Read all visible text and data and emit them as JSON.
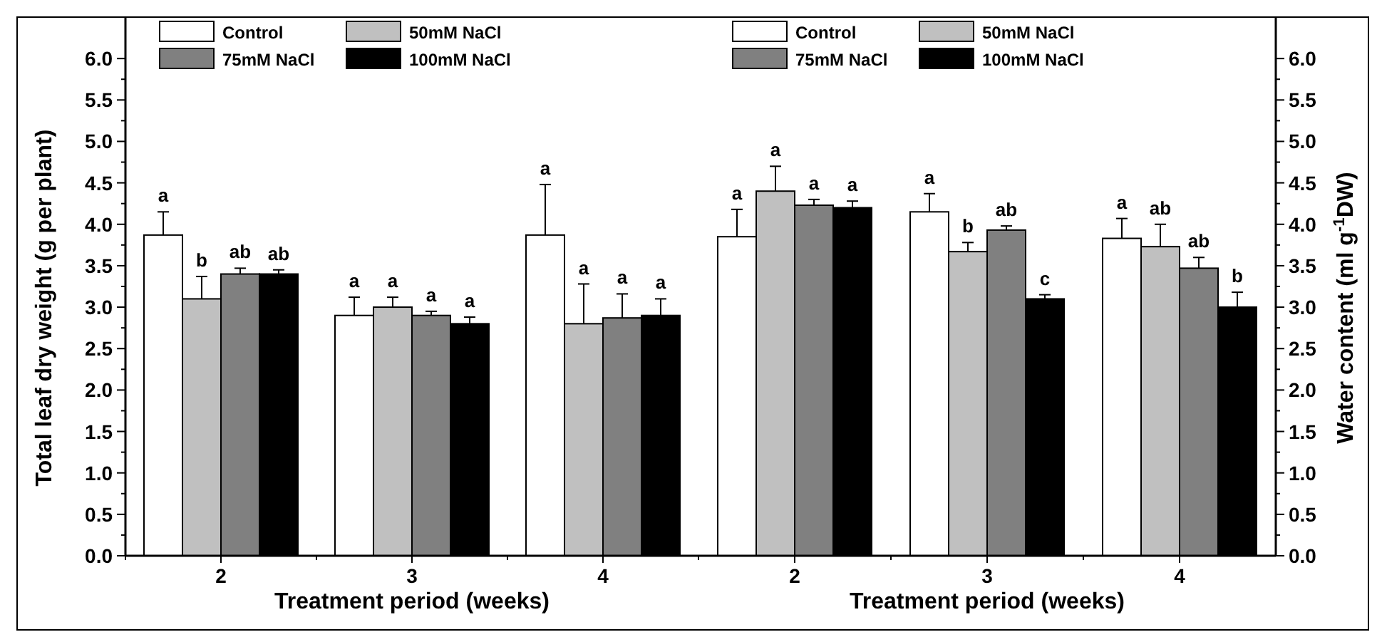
{
  "chart_data": [
    {
      "type": "bar",
      "xlabel": "Treatment period (weeks)",
      "ylabel": "Total leaf dry weight (g per plant)",
      "categories": [
        "2",
        "3",
        "4"
      ],
      "legend": "top left",
      "ylim": [
        0,
        6.5
      ],
      "yticks": [
        {
          "value": 0,
          "label": "0.0"
        },
        {
          "value": 0.25,
          "label": null
        },
        {
          "value": 0.5,
          "label": "0.5"
        },
        {
          "value": 0.75,
          "label": null
        },
        {
          "value": 1,
          "label": "1.0"
        },
        {
          "value": 1.25,
          "label": null
        },
        {
          "value": 1.5,
          "label": "1.5"
        },
        {
          "value": 1.75,
          "label": null
        },
        {
          "value": 2,
          "label": "2.0"
        },
        {
          "value": 2.25,
          "label": null
        },
        {
          "value": 2.5,
          "label": "2.5"
        },
        {
          "value": 2.75,
          "label": null
        },
        {
          "value": 3,
          "label": "3.0"
        },
        {
          "value": 3.25,
          "label": null
        },
        {
          "value": 3.5,
          "label": "3.5"
        },
        {
          "value": 3.75,
          "label": null
        },
        {
          "value": 4,
          "label": "4.0"
        },
        {
          "value": 4.25,
          "label": null
        },
        {
          "value": 4.5,
          "label": "4.5"
        },
        {
          "value": 4.75,
          "label": null
        },
        {
          "value": 5,
          "label": "5.0"
        },
        {
          "value": 5.25,
          "label": null
        },
        {
          "value": 5.5,
          "label": "5.5"
        },
        {
          "value": 5.75,
          "label": null
        },
        {
          "value": 6,
          "label": "6.0"
        }
      ],
      "series": [
        {
          "name": "Control",
          "color": "#ffffff",
          "values": [
            3.87,
            2.9,
            3.87
          ],
          "errors": [
            0.28,
            0.22,
            0.61
          ],
          "value_labels": [
            "a",
            "a",
            "a"
          ]
        },
        {
          "name": "50mM NaCl",
          "color": "#c0c0c0",
          "values": [
            3.1,
            3.0,
            2.8
          ],
          "errors": [
            0.27,
            0.12,
            0.48
          ],
          "value_labels": [
            "b",
            "a",
            "a"
          ]
        },
        {
          "name": "75mM NaCl",
          "color": "#808080",
          "values": [
            3.4,
            2.9,
            2.87
          ],
          "errors": [
            0.07,
            0.05,
            0.29
          ],
          "value_labels": [
            "ab",
            "a",
            "a"
          ]
        },
        {
          "name": "100mM NaCl",
          "color": "#000000",
          "values": [
            3.4,
            2.8,
            2.9
          ],
          "errors": [
            0.05,
            0.08,
            0.2
          ],
          "value_labels": [
            "ab",
            "a",
            "a"
          ]
        }
      ]
    },
    {
      "type": "bar",
      "xlabel": "Treatment period (weeks)",
      "y2label": "Water content (ml g$^{-1}$DW)",
      "categories": [
        "2",
        "3",
        "4"
      ],
      "legend": "top left",
      "y2lim": [
        0,
        6.5
      ],
      "y2ticks": [
        {
          "value": 0,
          "label": "0.0"
        },
        {
          "value": 0.25,
          "label": null
        },
        {
          "value": 0.5,
          "label": "0.5"
        },
        {
          "value": 0.75,
          "label": null
        },
        {
          "value": 1,
          "label": "1.0"
        },
        {
          "value": 1.25,
          "label": null
        },
        {
          "value": 1.5,
          "label": "1.5"
        },
        {
          "value": 1.75,
          "label": null
        },
        {
          "value": 2,
          "label": "2.0"
        },
        {
          "value": 2.25,
          "label": null
        },
        {
          "value": 2.5,
          "label": "2.5"
        },
        {
          "value": 2.75,
          "label": null
        },
        {
          "value": 3,
          "label": "3.0"
        },
        {
          "value": 3.25,
          "label": null
        },
        {
          "value": 3.5,
          "label": "3.5"
        },
        {
          "value": 3.75,
          "label": null
        },
        {
          "value": 4,
          "label": "4.0"
        },
        {
          "value": 4.25,
          "label": null
        },
        {
          "value": 4.5,
          "label": "4.5"
        },
        {
          "value": 4.75,
          "label": null
        },
        {
          "value": 5,
          "label": "5.0"
        },
        {
          "value": 5.25,
          "label": null
        },
        {
          "value": 5.5,
          "label": "5.5"
        },
        {
          "value": 5.75,
          "label": null
        },
        {
          "value": 6,
          "label": "6.0"
        }
      ],
      "series": [
        {
          "name": "Control",
          "color": "#ffffff",
          "axis": "y2",
          "values": [
            3.85,
            4.15,
            3.83
          ],
          "errors": [
            0.33,
            0.22,
            0.24
          ],
          "value_labels": [
            "a",
            "a",
            "a"
          ]
        },
        {
          "name": "50mM NaCl",
          "color": "#c0c0c0",
          "axis": "y2",
          "values": [
            4.4,
            3.67,
            3.73
          ],
          "errors": [
            0.3,
            0.11,
            0.27
          ],
          "value_labels": [
            "a",
            "b",
            "ab"
          ]
        },
        {
          "name": "75mM NaCl",
          "color": "#808080",
          "axis": "y2",
          "values": [
            4.23,
            3.93,
            3.47
          ],
          "errors": [
            0.07,
            0.05,
            0.13
          ],
          "value_labels": [
            "a",
            "ab",
            "ab"
          ]
        },
        {
          "name": "100mM NaCl",
          "color": "#000000",
          "axis": "y2",
          "values": [
            4.2,
            3.1,
            3.0
          ],
          "errors": [
            0.08,
            0.05,
            0.18
          ],
          "value_labels": [
            "a",
            "c",
            "b"
          ]
        }
      ]
    }
  ]
}
